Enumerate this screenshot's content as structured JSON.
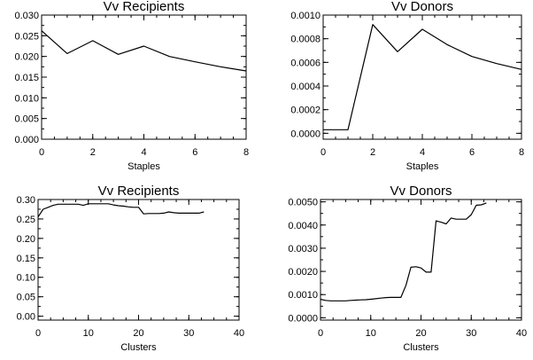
{
  "chart_data": [
    {
      "type": "line",
      "title": "Vv Recipients",
      "xlabel": "Staples",
      "ylabel": "",
      "xlim": [
        0,
        8
      ],
      "ylim": [
        0.0,
        0.03
      ],
      "xticks": [
        "0",
        "2",
        "4",
        "6",
        "8"
      ],
      "xtick_values": [
        0,
        2,
        4,
        6,
        8
      ],
      "yticks": [
        "0.000",
        "0.005",
        "0.010",
        "0.015",
        "0.020",
        "0.025",
        "0.030"
      ],
      "ytick_values": [
        0.0,
        0.005,
        0.01,
        0.015,
        0.02,
        0.025,
        0.03
      ],
      "grid": false,
      "series": [
        {
          "x": [
            0,
            1,
            2,
            3,
            4,
            5,
            6,
            7,
            8
          ],
          "y": [
            0.0262,
            0.0207,
            0.0238,
            0.0205,
            0.0225,
            0.02,
            0.0187,
            0.0175,
            0.0165
          ]
        }
      ]
    },
    {
      "type": "line",
      "title": "Vv Donors",
      "xlabel": "Staples",
      "ylabel": "",
      "xlim": [
        0,
        8
      ],
      "ylim": [
        -5e-05,
        0.001
      ],
      "xticks": [
        "0",
        "2",
        "4",
        "6",
        "8"
      ],
      "xtick_values": [
        0,
        2,
        4,
        6,
        8
      ],
      "yticks": [
        "0.0000",
        "0.0002",
        "0.0004",
        "0.0006",
        "0.0008",
        "0.0010"
      ],
      "ytick_values": [
        0.0,
        0.0002,
        0.0004,
        0.0006,
        0.0008,
        0.001
      ],
      "grid": false,
      "series": [
        {
          "x": [
            0,
            1,
            2,
            3,
            4,
            5,
            6,
            7,
            8
          ],
          "y": [
            3e-05,
            3e-05,
            0.00092,
            0.00069,
            0.00088,
            0.00075,
            0.00065,
            0.00059,
            0.00054
          ]
        }
      ]
    },
    {
      "type": "line",
      "title": "Vv Recipients",
      "xlabel": "Clusters",
      "ylabel": "",
      "xlim": [
        0,
        40
      ],
      "ylim": [
        -0.01,
        0.3
      ],
      "xticks": [
        "0",
        "10",
        "20",
        "30",
        "40"
      ],
      "xtick_values": [
        0,
        10,
        20,
        30,
        40
      ],
      "yticks": [
        "0.00",
        "0.05",
        "0.10",
        "0.15",
        "0.20",
        "0.25",
        "0.30"
      ],
      "ytick_values": [
        0.0,
        0.05,
        0.1,
        0.15,
        0.2,
        0.25,
        0.3
      ],
      "grid": false,
      "series": [
        {
          "x": [
            0,
            1,
            2,
            3,
            4,
            5,
            6,
            7,
            8,
            9,
            10,
            11,
            12,
            13,
            14,
            15,
            16,
            17,
            18,
            19,
            20,
            21,
            22,
            23,
            24,
            25,
            26,
            27,
            28,
            29,
            30,
            31,
            32,
            33
          ],
          "y": [
            0.255,
            0.275,
            0.28,
            0.285,
            0.288,
            0.288,
            0.288,
            0.288,
            0.288,
            0.285,
            0.289,
            0.289,
            0.289,
            0.289,
            0.289,
            0.286,
            0.284,
            0.283,
            0.281,
            0.28,
            0.28,
            0.263,
            0.264,
            0.264,
            0.264,
            0.265,
            0.268,
            0.266,
            0.265,
            0.265,
            0.265,
            0.265,
            0.265,
            0.268
          ]
        }
      ]
    },
    {
      "type": "line",
      "title": "Vv Donors",
      "xlabel": "Clusters",
      "ylabel": "",
      "xlim": [
        0,
        40
      ],
      "ylim": [
        -0.0001,
        0.0051
      ],
      "xticks": [
        "0",
        "10",
        "20",
        "30",
        "40"
      ],
      "xtick_values": [
        0,
        10,
        20,
        30,
        40
      ],
      "yticks": [
        "0.0000",
        "0.0010",
        "0.0020",
        "0.0030",
        "0.0040",
        "0.0050"
      ],
      "ytick_values": [
        0.0,
        0.001,
        0.002,
        0.003,
        0.004,
        0.005
      ],
      "grid": false,
      "series": [
        {
          "x": [
            0,
            1,
            2,
            3,
            4,
            5,
            6,
            7,
            8,
            9,
            10,
            11,
            12,
            13,
            14,
            15,
            16,
            17,
            18,
            19,
            20,
            21,
            22,
            23,
            24,
            25,
            26,
            27,
            28,
            29,
            30,
            31,
            32,
            33
          ],
          "y": [
            0.0008,
            0.00075,
            0.00073,
            0.00073,
            0.00073,
            0.00073,
            0.00075,
            0.00076,
            0.00077,
            0.00078,
            0.0008,
            0.00082,
            0.00085,
            0.00087,
            0.00088,
            0.00088,
            0.00088,
            0.0014,
            0.00218,
            0.0022,
            0.00215,
            0.00197,
            0.00197,
            0.00418,
            0.00412,
            0.00405,
            0.0043,
            0.00425,
            0.00425,
            0.00425,
            0.00445,
            0.00485,
            0.00487,
            0.00495
          ]
        }
      ]
    }
  ]
}
